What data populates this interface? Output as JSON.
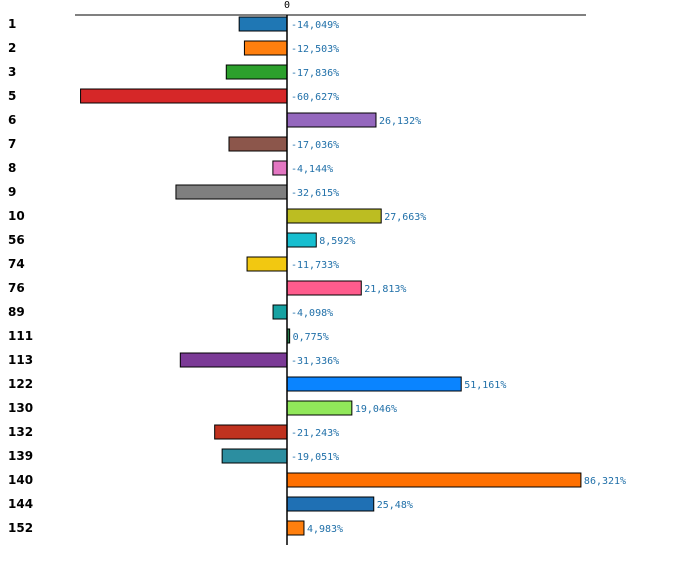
{
  "chart_data": {
    "type": "bar",
    "orientation": "horizontal",
    "title": "",
    "xlabel": "",
    "ylabel": "",
    "zero_tick": "0",
    "xlim": [
      -62,
      91
    ],
    "categories": [
      "1",
      "2",
      "3",
      "5",
      "6",
      "7",
      "8",
      "9",
      "10",
      "56",
      "74",
      "76",
      "89",
      "111",
      "113",
      "122",
      "130",
      "132",
      "139",
      "140",
      "144",
      "152"
    ],
    "values": [
      -14.049,
      -12.503,
      -17.836,
      -60.627,
      26.132,
      -17.036,
      -4.144,
      -32.615,
      27.663,
      8.592,
      -11.733,
      21.813,
      -4.098,
      0.775,
      -31.336,
      51.161,
      19.046,
      -21.243,
      -19.051,
      86.321,
      25.48,
      4.983
    ],
    "value_labels": [
      "-14,049%",
      "-12,503%",
      "-17,836%",
      "-60,627%",
      "26,132%",
      "-17,036%",
      "-4,144%",
      "-32,615%",
      "27,663%",
      "8,592%",
      "-11,733%",
      "21,813%",
      "-4,098%",
      "0,775%",
      "-31,336%",
      "51,161%",
      "19,046%",
      "-21,243%",
      "-19,051%",
      "86,321%",
      "25,48%",
      "4,983%"
    ],
    "colors": [
      "#1f77b4",
      "#ff7f0e",
      "#2ca02c",
      "#d62728",
      "#9467bd",
      "#8c564b",
      "#e377c2",
      "#7f7f7f",
      "#bcbd22",
      "#17becf",
      "#f2c811",
      "#ff5c8d",
      "#17a2a2",
      "#2b7a4b",
      "#7b3a96",
      "#0a84ff",
      "#91e85a",
      "#c0321f",
      "#2c8ea0",
      "#ff7000",
      "#1f70b4",
      "#ff7f0e"
    ]
  }
}
